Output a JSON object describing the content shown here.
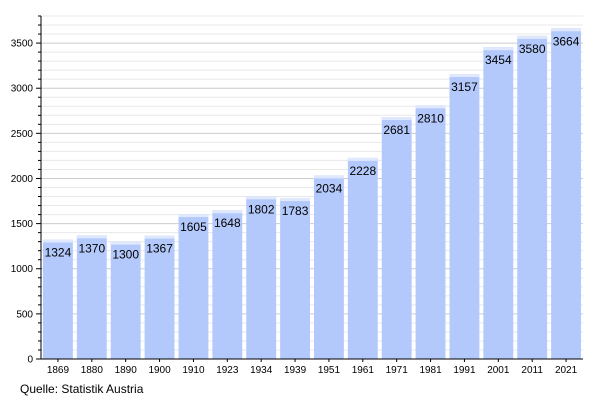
{
  "chart_data": {
    "type": "bar",
    "categories": [
      "1869",
      "1880",
      "1890",
      "1900",
      "1910",
      "1923",
      "1934",
      "1939",
      "1951",
      "1961",
      "1971",
      "1981",
      "1991",
      "2001",
      "2011",
      "2021"
    ],
    "values": [
      1324,
      1370,
      1300,
      1367,
      1605,
      1648,
      1802,
      1783,
      2034,
      2228,
      2681,
      2810,
      3157,
      3454,
      3580,
      3664
    ],
    "ylim": [
      0,
      3800
    ],
    "yticks": [
      0,
      500,
      1000,
      1500,
      2000,
      2500,
      3000,
      3500
    ],
    "grid": true,
    "legend": "none",
    "bar_color": "#b3c9fb",
    "bar_edge_color": "#dfe8fd",
    "grid_color": "#cccccc",
    "source": "Quelle: Statistik Austria"
  }
}
